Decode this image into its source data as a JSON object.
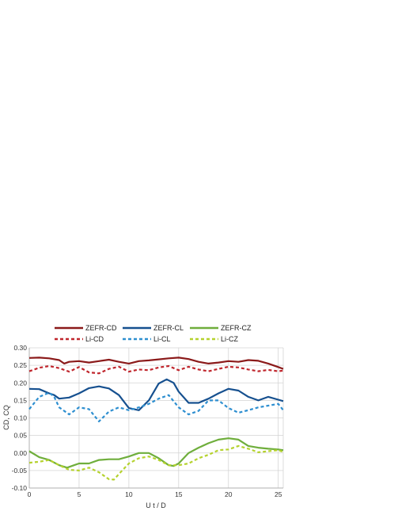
{
  "chart_data": {
    "type": "line",
    "xlabel": "U t / D",
    "ylabel": "CD, CQ",
    "xlim": [
      0,
      25.5
    ],
    "ylim": [
      -0.1,
      0.3
    ],
    "x_ticks": [
      "0",
      "5",
      "10",
      "15",
      "20",
      "25"
    ],
    "x_tick_values": [
      0,
      5,
      10,
      15,
      20,
      25
    ],
    "y_ticks": [
      "-0.10",
      "-0.05",
      "0.00",
      "0.05",
      "0.10",
      "0.15",
      "0.20",
      "0.25",
      "0.30"
    ],
    "y_tick_values": [
      -0.1,
      -0.05,
      0.0,
      0.05,
      0.1,
      0.15,
      0.2,
      0.25,
      0.3
    ],
    "grid": true,
    "legend_position": "top",
    "series": [
      {
        "name": "ZEFR-CD",
        "color": "#8b1a1a",
        "dash": "solid",
        "x": [
          0,
          1,
          2,
          3,
          3.5,
          4,
          5,
          6,
          7,
          8,
          9,
          10,
          11,
          12,
          13,
          14,
          15,
          16,
          17,
          18,
          19,
          20,
          21,
          22,
          23,
          24,
          25,
          25.5
        ],
        "y": [
          0.271,
          0.272,
          0.27,
          0.265,
          0.255,
          0.26,
          0.262,
          0.258,
          0.262,
          0.266,
          0.26,
          0.255,
          0.262,
          0.264,
          0.267,
          0.27,
          0.272,
          0.268,
          0.26,
          0.255,
          0.258,
          0.262,
          0.26,
          0.265,
          0.263,
          0.255,
          0.245,
          0.24
        ]
      },
      {
        "name": "Li-CD",
        "color": "#c0262d",
        "dash": "dashed",
        "x": [
          0,
          1,
          2,
          3,
          4,
          5,
          6,
          7,
          8,
          9,
          10,
          11,
          12,
          13,
          14,
          15,
          16,
          17,
          18,
          19,
          20,
          21,
          22,
          23,
          24,
          25,
          25.5
        ],
        "y": [
          0.233,
          0.243,
          0.248,
          0.242,
          0.232,
          0.245,
          0.23,
          0.227,
          0.24,
          0.246,
          0.232,
          0.238,
          0.236,
          0.244,
          0.248,
          0.236,
          0.246,
          0.238,
          0.233,
          0.24,
          0.246,
          0.244,
          0.238,
          0.233,
          0.237,
          0.233,
          0.235
        ]
      },
      {
        "name": "ZEFR-CL",
        "color": "#16508f",
        "dash": "solid",
        "x": [
          0,
          1,
          2,
          2.5,
          3,
          4,
          5,
          6,
          7,
          8,
          9,
          10,
          11,
          12,
          13,
          13.8,
          14.5,
          15,
          16,
          17,
          18,
          19,
          20,
          21,
          22,
          23,
          24,
          25,
          25.5
        ],
        "y": [
          0.183,
          0.182,
          0.17,
          0.165,
          0.155,
          0.158,
          0.17,
          0.185,
          0.19,
          0.184,
          0.165,
          0.128,
          0.122,
          0.15,
          0.198,
          0.21,
          0.2,
          0.175,
          0.143,
          0.143,
          0.155,
          0.17,
          0.183,
          0.178,
          0.16,
          0.15,
          0.16,
          0.152,
          0.148
        ]
      },
      {
        "name": "Li-CL",
        "color": "#2e8fd0",
        "dash": "dashed",
        "x": [
          0,
          1,
          2,
          2.5,
          3,
          4,
          5,
          6,
          7,
          8,
          9,
          10,
          11,
          12,
          13,
          14,
          15,
          16,
          17,
          18,
          19,
          20,
          21,
          22,
          23,
          24,
          25,
          25.5
        ],
        "y": [
          0.125,
          0.16,
          0.172,
          0.16,
          0.13,
          0.11,
          0.13,
          0.125,
          0.09,
          0.118,
          0.13,
          0.122,
          0.13,
          0.14,
          0.155,
          0.165,
          0.13,
          0.11,
          0.12,
          0.15,
          0.15,
          0.128,
          0.115,
          0.122,
          0.13,
          0.135,
          0.14,
          0.122
        ]
      },
      {
        "name": "ZEFR-CZ",
        "color": "#6fae3c",
        "dash": "solid",
        "x": [
          0,
          1,
          2,
          3,
          3.8,
          4.5,
          5,
          6,
          7,
          8,
          9,
          10,
          11,
          12,
          13,
          14,
          14.5,
          15,
          16,
          17,
          18,
          19,
          20,
          21,
          22,
          23,
          24,
          25,
          25.5
        ],
        "y": [
          0.005,
          -0.012,
          -0.02,
          -0.035,
          -0.042,
          -0.035,
          -0.03,
          -0.03,
          -0.02,
          -0.018,
          -0.018,
          -0.01,
          0.0,
          0.0,
          -0.015,
          -0.035,
          -0.037,
          -0.03,
          0.0,
          0.015,
          0.028,
          0.038,
          0.042,
          0.038,
          0.02,
          0.015,
          0.012,
          0.01,
          0.008
        ]
      },
      {
        "name": "Li-CZ",
        "color": "#b5d22e",
        "dash": "dashed",
        "x": [
          0,
          1,
          2,
          3,
          4,
          5,
          6,
          7,
          8,
          8.5,
          9,
          10,
          11,
          12,
          13,
          14,
          15,
          16,
          17,
          18,
          19,
          20,
          21,
          22,
          23,
          24,
          25,
          25.5
        ],
        "y": [
          -0.028,
          -0.025,
          -0.02,
          -0.035,
          -0.048,
          -0.05,
          -0.042,
          -0.055,
          -0.075,
          -0.076,
          -0.06,
          -0.03,
          -0.015,
          -0.01,
          -0.02,
          -0.035,
          -0.035,
          -0.03,
          -0.015,
          -0.005,
          0.008,
          0.01,
          0.02,
          0.012,
          0.002,
          0.005,
          0.008,
          0.003
        ]
      }
    ]
  }
}
